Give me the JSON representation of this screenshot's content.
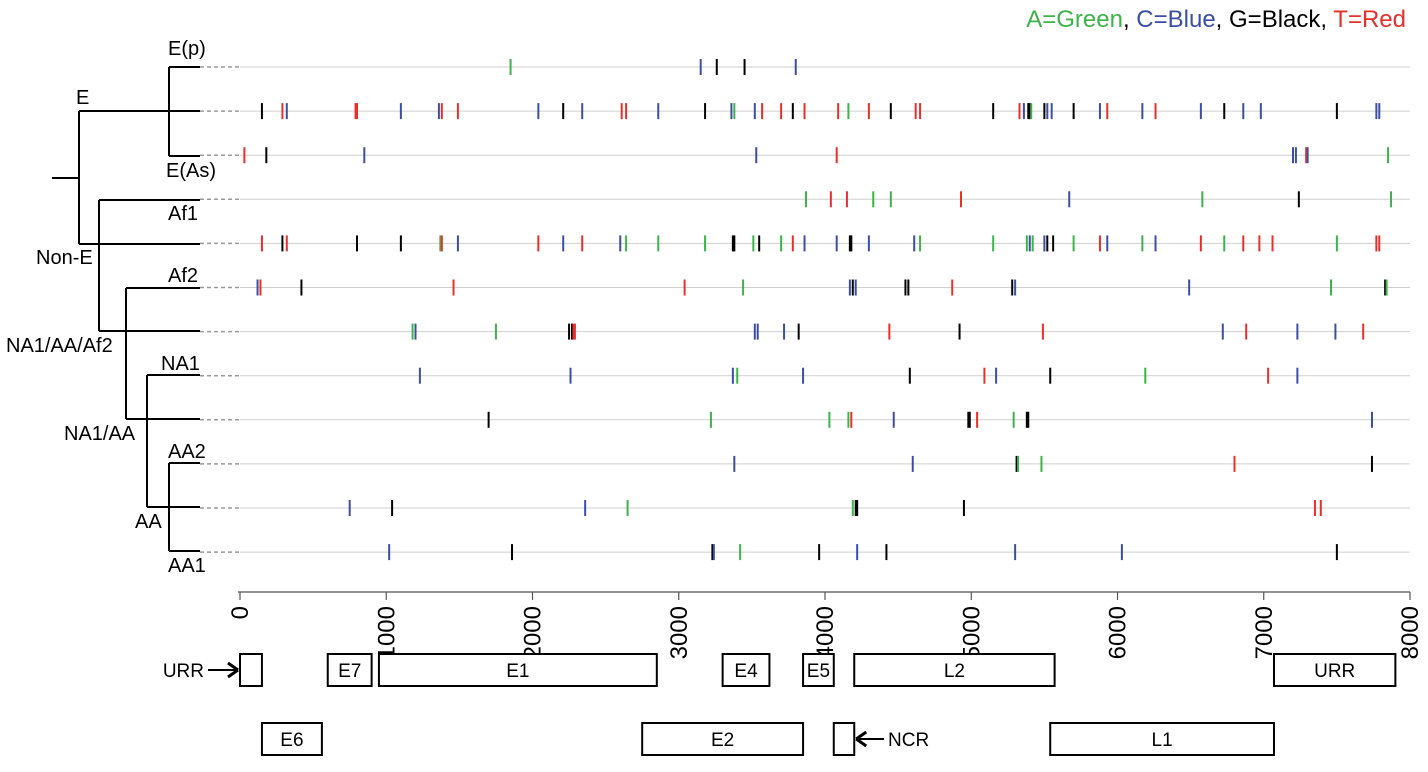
{
  "legend": [
    {
      "text": "A=Green",
      "color": "#3db34a"
    },
    {
      "text": ", ",
      "color": "#000000"
    },
    {
      "text": "C=Blue",
      "color": "#3a4fa3"
    },
    {
      "text": ", ",
      "color": "#000000"
    },
    {
      "text": "G=Black",
      "color": "#000000"
    },
    {
      "text": ", ",
      "color": "#000000"
    },
    {
      "text": "T=Red",
      "color": "#e8302a"
    }
  ],
  "tree_labels": {
    "e_p": "E(p)",
    "e": "E",
    "e_as": "E(As)",
    "af1": "Af1",
    "non_e": "Non-E",
    "af2": "Af2",
    "na1_aa_af2": "NA1/AA/Af2",
    "na1": "NA1",
    "na1_aa": "NA1/AA",
    "aa2": "AA2",
    "aa": "AA",
    "aa1": "AA1"
  },
  "chart_data": {
    "type": "scatter",
    "title": "",
    "xlabel": "",
    "ylabel": "",
    "xlim": [
      0,
      8000
    ],
    "x_ticks": [
      0,
      1000,
      2000,
      3000,
      4000,
      5000,
      6000,
      7000,
      8000
    ],
    "colors": {
      "A": "#3db34a",
      "C": "#3a4fa3",
      "G": "#000000",
      "T": "#e8302a"
    },
    "tracks": [
      {
        "mutations": [
          [
            "A",
            1850
          ],
          [
            "C",
            3150
          ],
          [
            "G",
            3260
          ],
          [
            "G",
            3450
          ],
          [
            "C",
            3800
          ]
        ]
      },
      {
        "mutations": [
          [
            "G",
            150
          ],
          [
            "T",
            290
          ],
          [
            "C",
            320
          ],
          [
            "T",
            790
          ],
          [
            "T",
            800
          ],
          [
            "C",
            1100
          ],
          [
            "C",
            1360
          ],
          [
            "T",
            1380
          ],
          [
            "T",
            1490
          ],
          [
            "C",
            2040
          ],
          [
            "G",
            2210
          ],
          [
            "C",
            2340
          ],
          [
            "T",
            2610
          ],
          [
            "T",
            2640
          ],
          [
            "C",
            2860
          ],
          [
            "G",
            3180
          ],
          [
            "C",
            3360
          ],
          [
            "A",
            3380
          ],
          [
            "C",
            3520
          ],
          [
            "T",
            3570
          ],
          [
            "T",
            3700
          ],
          [
            "G",
            3780
          ],
          [
            "T",
            3860
          ],
          [
            "T",
            4090
          ],
          [
            "A",
            4160
          ],
          [
            "T",
            4300
          ],
          [
            "G",
            4450
          ],
          [
            "T",
            4620
          ],
          [
            "T",
            4650
          ],
          [
            "G",
            5150
          ],
          [
            "T",
            5330
          ],
          [
            "C",
            5360
          ],
          [
            "G",
            5390
          ],
          [
            "G",
            5400
          ],
          [
            "A",
            5410
          ],
          [
            "G",
            5500
          ],
          [
            "C",
            5520
          ],
          [
            "C",
            5550
          ],
          [
            "G",
            5700
          ],
          [
            "C",
            5880
          ],
          [
            "T",
            5930
          ],
          [
            "C",
            6170
          ],
          [
            "T",
            6260
          ],
          [
            "C",
            6570
          ],
          [
            "G",
            6730
          ],
          [
            "C",
            6860
          ],
          [
            "C",
            6980
          ],
          [
            "G",
            7500
          ],
          [
            "C",
            7770
          ],
          [
            "C",
            7790
          ]
        ]
      },
      {
        "mutations": [
          [
            "T",
            30
          ],
          [
            "G",
            180
          ],
          [
            "C",
            850
          ],
          [
            "C",
            3530
          ],
          [
            "T",
            4080
          ],
          [
            "C",
            7200
          ],
          [
            "C",
            7220
          ],
          [
            "T",
            7290
          ],
          [
            "C",
            7300
          ],
          [
            "A",
            7850
          ]
        ]
      },
      {
        "mutations": [
          [
            "A",
            3870
          ],
          [
            "T",
            4040
          ],
          [
            "T",
            4150
          ],
          [
            "A",
            4330
          ],
          [
            "A",
            4450
          ],
          [
            "T",
            4930
          ],
          [
            "C",
            5670
          ],
          [
            "A",
            6580
          ],
          [
            "G",
            7240
          ],
          [
            "A",
            7870
          ]
        ]
      },
      {
        "mutations": [
          [
            "T",
            150
          ],
          [
            "G",
            290
          ],
          [
            "T",
            320
          ],
          [
            "G",
            800
          ],
          [
            "G",
            1100
          ],
          [
            "A",
            1370
          ],
          [
            "T",
            1380
          ],
          [
            "C",
            1490
          ],
          [
            "T",
            2040
          ],
          [
            "C",
            2210
          ],
          [
            "T",
            2340
          ],
          [
            "C",
            2600
          ],
          [
            "A",
            2640
          ],
          [
            "A",
            2860
          ],
          [
            "A",
            3180
          ],
          [
            "G",
            3370
          ],
          [
            "G",
            3380
          ],
          [
            "G",
            3550
          ],
          [
            "A",
            3510
          ],
          [
            "A",
            3700
          ],
          [
            "T",
            3780
          ],
          [
            "C",
            3860
          ],
          [
            "C",
            4080
          ],
          [
            "G",
            4170
          ],
          [
            "G",
            4180
          ],
          [
            "C",
            4300
          ],
          [
            "C",
            4610
          ],
          [
            "A",
            4650
          ],
          [
            "A",
            5150
          ],
          [
            "A",
            5380
          ],
          [
            "C",
            5400
          ],
          [
            "A",
            5420
          ],
          [
            "C",
            5500
          ],
          [
            "G",
            5520
          ],
          [
            "G",
            5560
          ],
          [
            "A",
            5700
          ],
          [
            "T",
            5880
          ],
          [
            "C",
            5930
          ],
          [
            "A",
            6170
          ],
          [
            "C",
            6260
          ],
          [
            "T",
            6570
          ],
          [
            "A",
            6730
          ],
          [
            "T",
            6860
          ],
          [
            "T",
            6970
          ],
          [
            "T",
            7060
          ],
          [
            "A",
            7500
          ],
          [
            "T",
            7770
          ],
          [
            "T",
            7790
          ]
        ]
      },
      {
        "mutations": [
          [
            "C",
            120
          ],
          [
            "T",
            140
          ],
          [
            "G",
            420
          ],
          [
            "T",
            1460
          ],
          [
            "T",
            3040
          ],
          [
            "A",
            3440
          ],
          [
            "C",
            4170
          ],
          [
            "G",
            4190
          ],
          [
            "C",
            4210
          ],
          [
            "G",
            4550
          ],
          [
            "G",
            4570
          ],
          [
            "T",
            4870
          ],
          [
            "G",
            5280
          ],
          [
            "C",
            5300
          ],
          [
            "C",
            6490
          ],
          [
            "A",
            7460
          ],
          [
            "G",
            7830
          ],
          [
            "A",
            7840
          ]
        ]
      },
      {
        "mutations": [
          [
            "A",
            1180
          ],
          [
            "C",
            1200
          ],
          [
            "A",
            1750
          ],
          [
            "G",
            2250
          ],
          [
            "G",
            2270
          ],
          [
            "T",
            2280
          ],
          [
            "T",
            2290
          ],
          [
            "C",
            3520
          ],
          [
            "C",
            3540
          ],
          [
            "C",
            3720
          ],
          [
            "G",
            3820
          ],
          [
            "T",
            4440
          ],
          [
            "G",
            4920
          ],
          [
            "T",
            5490
          ],
          [
            "C",
            6720
          ],
          [
            "T",
            6880
          ],
          [
            "C",
            7230
          ],
          [
            "C",
            7490
          ],
          [
            "T",
            7680
          ]
        ]
      },
      {
        "mutations": [
          [
            "C",
            1230
          ],
          [
            "C",
            2260
          ],
          [
            "C",
            3370
          ],
          [
            "A",
            3400
          ],
          [
            "C",
            3850
          ],
          [
            "G",
            4580
          ],
          [
            "T",
            5090
          ],
          [
            "C",
            5170
          ],
          [
            "G",
            5540
          ],
          [
            "A",
            6190
          ],
          [
            "T",
            7030
          ],
          [
            "C",
            7230
          ]
        ]
      },
      {
        "mutations": [
          [
            "G",
            1700
          ],
          [
            "A",
            3220
          ],
          [
            "A",
            4030
          ],
          [
            "A",
            4160
          ],
          [
            "T",
            4180
          ],
          [
            "C",
            4470
          ],
          [
            "G",
            4980
          ],
          [
            "G",
            4990
          ],
          [
            "T",
            5040
          ],
          [
            "A",
            5290
          ],
          [
            "G",
            5380
          ],
          [
            "G",
            5390
          ],
          [
            "C",
            7740
          ]
        ]
      },
      {
        "mutations": [
          [
            "C",
            3380
          ],
          [
            "C",
            4600
          ],
          [
            "G",
            5310
          ],
          [
            "A",
            5320
          ],
          [
            "A",
            5480
          ],
          [
            "T",
            6800
          ],
          [
            "G",
            7740
          ]
        ]
      },
      {
        "mutations": [
          [
            "C",
            750
          ],
          [
            "G",
            1040
          ],
          [
            "C",
            2360
          ],
          [
            "A",
            2650
          ],
          [
            "A",
            4190
          ],
          [
            "G",
            4210
          ],
          [
            "G",
            4220
          ],
          [
            "G",
            4950
          ],
          [
            "T",
            7350
          ],
          [
            "T",
            7390
          ]
        ]
      },
      {
        "mutations": [
          [
            "C",
            1020
          ],
          [
            "G",
            1860
          ],
          [
            "G",
            3230
          ],
          [
            "C",
            3240
          ],
          [
            "A",
            3420
          ],
          [
            "G",
            3960
          ],
          [
            "C",
            4220
          ],
          [
            "G",
            4420
          ],
          [
            "C",
            5300
          ],
          [
            "C",
            6030
          ],
          [
            "G",
            7500
          ]
        ]
      }
    ],
    "genes": [
      {
        "label": "",
        "start": 0,
        "end": 150,
        "row": 0
      },
      {
        "label": "E7",
        "start": 600,
        "end": 900,
        "row": 0
      },
      {
        "label": "E1",
        "start": 950,
        "end": 2850,
        "row": 0
      },
      {
        "label": "E4",
        "start": 3300,
        "end": 3620,
        "row": 0
      },
      {
        "label": "E5",
        "start": 3850,
        "end": 4060,
        "row": 0
      },
      {
        "label": "L2",
        "start": 4200,
        "end": 5570,
        "row": 0
      },
      {
        "label": "URR",
        "start": 7070,
        "end": 7900,
        "row": 0
      },
      {
        "label": "E6",
        "start": 150,
        "end": 560,
        "row": 1
      },
      {
        "label": "E2",
        "start": 2750,
        "end": 3850,
        "row": 1
      },
      {
        "label": "",
        "start": 4060,
        "end": 4200,
        "row": 1
      },
      {
        "label": "L1",
        "start": 5540,
        "end": 7070,
        "row": 1
      }
    ],
    "gene_arrows": [
      {
        "label": "URR",
        "target": "start-row0"
      },
      {
        "label": "NCR",
        "target": "ncr-row1"
      }
    ]
  }
}
